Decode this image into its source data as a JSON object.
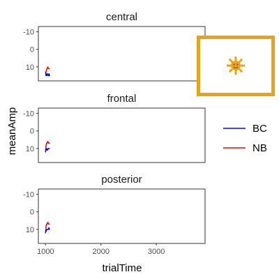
{
  "chart_data": {
    "type": "line",
    "xlabel": "trialTime",
    "ylabel": "meanAmp",
    "xlim": [
      870,
      3880
    ],
    "ylim": [
      -13,
      18
    ],
    "y_reversed": true,
    "x_ticks": [
      1000,
      2000,
      3000
    ],
    "x_tick_labels": [
      "1000",
      "2000",
      "3000"
    ],
    "y_ticks": [
      -10,
      0,
      10
    ],
    "y_tick_labels": [
      "-10",
      "0",
      "10"
    ],
    "grid": false,
    "legend": {
      "placement": "right",
      "entries": [
        {
          "label": "BC",
          "color": "#0000ff"
        },
        {
          "label": "NB",
          "color": "#ff0000"
        }
      ]
    },
    "panels": [
      {
        "title": "central",
        "series": [
          {
            "name": "BC",
            "color": "#0000ff",
            "x": [
              1000,
              1005,
              1010,
              1018,
              1025,
              1040,
              1055,
              1065,
              1072
            ],
            "y": [
              13,
              14,
              15,
              14,
              15,
              14,
              15,
              14,
              15
            ]
          },
          {
            "name": "NB",
            "color": "#ff0000",
            "x": [
              1010,
              1015,
              1022,
              1030,
              1040,
              1052,
              1062,
              1068
            ],
            "y": [
              13,
              12,
              11,
              11,
              10,
              11,
              11,
              11
            ]
          }
        ]
      },
      {
        "title": "frontal",
        "series": [
          {
            "name": "BC",
            "color": "#0000ff",
            "x": [
              1000,
              1004,
              1010,
              1020,
              1035,
              1050,
              1062,
              1070
            ],
            "y": [
              12,
              10,
              11,
              10,
              11,
              10,
              10,
              10
            ]
          },
          {
            "name": "NB",
            "color": "#ff0000",
            "x": [
              1005,
              1010,
              1018,
              1028,
              1040,
              1055,
              1065,
              1070
            ],
            "y": [
              10,
              8,
              7,
              7,
              6,
              7,
              7,
              7
            ]
          }
        ]
      },
      {
        "title": "posterior",
        "series": [
          {
            "name": "BC",
            "color": "#0000ff",
            "x": [
              1000,
              1005,
              1012,
              1022,
              1035,
              1050,
              1062,
              1070
            ],
            "y": [
              12,
              10,
              11,
              10,
              10,
              10,
              9,
              10
            ]
          },
          {
            "name": "NB",
            "color": "#ff0000",
            "x": [
              1005,
              1010,
              1018,
              1028,
              1040,
              1055,
              1065,
              1070
            ],
            "y": [
              10,
              8,
              7,
              7,
              6,
              7,
              7,
              7
            ]
          }
        ]
      }
    ]
  },
  "overlay": {
    "icon": "sun-icon",
    "border_color": "#e8a21c",
    "icon_color": "#e8a21c"
  }
}
